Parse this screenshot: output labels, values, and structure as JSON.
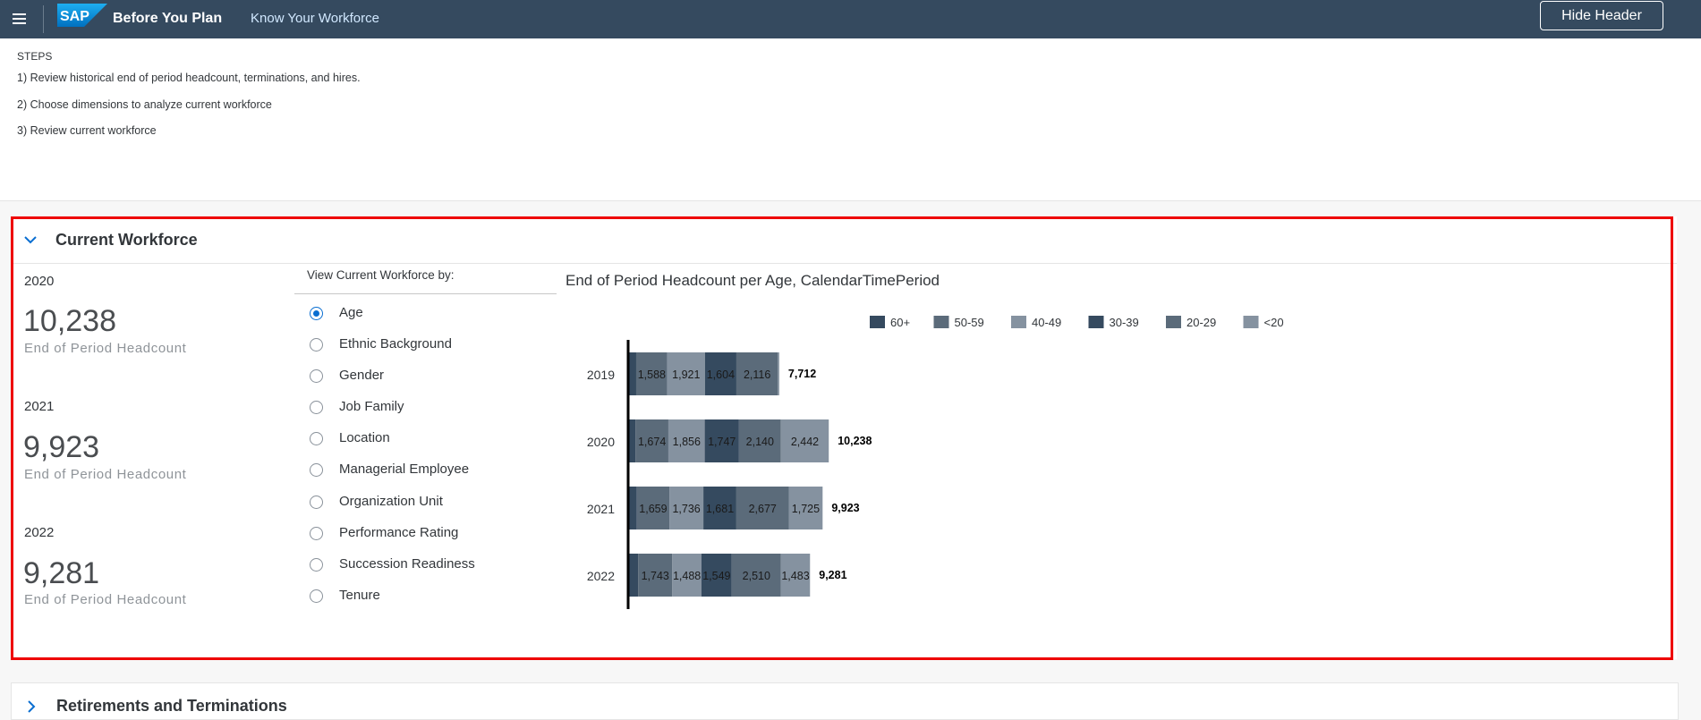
{
  "shell": {
    "logo_text": "SAP",
    "app_title": "Before You Plan",
    "nav_link": "Know Your Workforce",
    "hide_header_label": "Hide Header"
  },
  "steps": {
    "label": "STEPS",
    "items": [
      "1) Review historical end of period headcount, terminations, and hires.",
      "2) Choose dimensions to analyze current workforce",
      "3) Review current workforce"
    ]
  },
  "current_workforce": {
    "title": "Current Workforce",
    "kpis": [
      {
        "year": "2020",
        "value": "10,238",
        "label": "End of Period Headcount"
      },
      {
        "year": "2021",
        "value": "9,923",
        "label": "End of Period Headcount"
      },
      {
        "year": "2022",
        "value": "9,281",
        "label": "End of Period Headcount"
      }
    ],
    "view_by_label": "View Current Workforce by:",
    "view_options": [
      "Age",
      "Ethnic Background",
      "Gender",
      "Job Family",
      "Location",
      "Managerial Employee",
      "Organization Unit",
      "Performance Rating",
      "Succession Readiness",
      "Tenure"
    ],
    "selected_option": "Age",
    "chart_title": "End of Period Headcount per Age, CalendarTimePeriod"
  },
  "chart_data": {
    "type": "bar",
    "orientation": "horizontal",
    "stacked": true,
    "title": "End of Period Headcount per Age, CalendarTimePeriod",
    "categories": [
      "2019",
      "2020",
      "2021",
      "2022"
    ],
    "series": [
      {
        "name": "60+",
        "values": [
          410,
          379,
          445,
          508
        ],
        "color": "#354a5f"
      },
      {
        "name": "50-59",
        "values": [
          1588,
          1674,
          1659,
          1743
        ],
        "color": "#5b6b7a"
      },
      {
        "name": "40-49",
        "values": [
          1921,
          1856,
          1736,
          1488
        ],
        "color": "#8592a0"
      },
      {
        "name": "30-39",
        "values": [
          1604,
          1747,
          1681,
          1549
        ],
        "color": "#354a5f"
      },
      {
        "name": "20-29",
        "values": [
          2116,
          2140,
          2677,
          2510
        ],
        "color": "#5b6b7a"
      },
      {
        "name": "<20",
        "values": [
          73,
          2442,
          1725,
          1483
        ],
        "color": "#8592a0"
      }
    ],
    "totals": [
      "7,712",
      "10,238",
      "9,923",
      "9,281"
    ],
    "legend_position": "top-center",
    "grid": false
  },
  "retirements": {
    "title": "Retirements and Terminations"
  }
}
